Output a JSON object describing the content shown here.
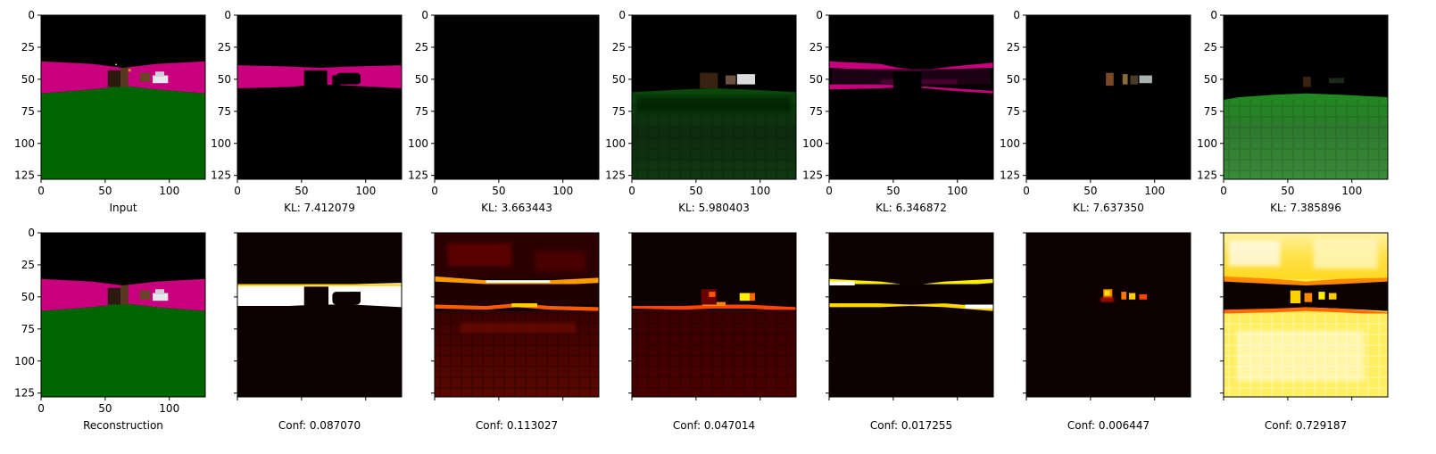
{
  "figure": {
    "layout": "2 rows x 7 image panels"
  },
  "chart_data": [
    {
      "type": "heatmap",
      "panel": "top-1",
      "content": "input scene: black sky, magenta band, green ground, brown blocks and white car",
      "caption": "Input",
      "xlim": [
        0,
        127
      ],
      "ylim": [
        127,
        0
      ],
      "xticks": [
        "0",
        "50",
        "100"
      ],
      "yticks": [
        "0",
        "25",
        "50",
        "75",
        "100",
        "125"
      ]
    },
    {
      "type": "heatmap",
      "panel": "top-2",
      "content": "component: magenta band with dark blocks",
      "caption": "KL: 7.412079",
      "xlim": [
        0,
        127
      ],
      "ylim": [
        127,
        0
      ],
      "xticks": [
        "0",
        "50",
        "100"
      ],
      "yticks": [
        "0",
        "25",
        "50",
        "75",
        "100",
        "125"
      ]
    },
    {
      "type": "heatmap",
      "panel": "top-3",
      "content": "component: nearly black",
      "caption": "KL: 3.663443",
      "xlim": [
        0,
        127
      ],
      "ylim": [
        127,
        0
      ],
      "xticks": [
        "0",
        "50",
        "100"
      ],
      "yticks": [
        "0",
        "25",
        "50",
        "75",
        "100",
        "125"
      ]
    },
    {
      "type": "heatmap",
      "panel": "top-4",
      "content": "component: dark green ground with objects",
      "caption": "KL: 5.980403",
      "xlim": [
        0,
        127
      ],
      "ylim": [
        127,
        0
      ],
      "xticks": [
        "0",
        "50",
        "100"
      ],
      "yticks": [
        "0",
        "25",
        "50",
        "75",
        "100",
        "125"
      ]
    },
    {
      "type": "heatmap",
      "panel": "top-5",
      "content": "component: thin magenta band",
      "caption": "KL: 6.346872",
      "xlim": [
        0,
        127
      ],
      "ylim": [
        127,
        0
      ],
      "xticks": [
        "0",
        "50",
        "100"
      ],
      "yticks": [
        "0",
        "25",
        "50",
        "75",
        "100",
        "125"
      ]
    },
    {
      "type": "heatmap",
      "panel": "top-6",
      "content": "component: small objects only",
      "caption": "KL: 7.637350",
      "xlim": [
        0,
        127
      ],
      "ylim": [
        127,
        0
      ],
      "xticks": [
        "0",
        "50",
        "100"
      ],
      "yticks": [
        "0",
        "25",
        "50",
        "75",
        "100",
        "125"
      ]
    },
    {
      "type": "heatmap",
      "panel": "top-7",
      "content": "component: green ground",
      "caption": "KL: 7.385896",
      "xlim": [
        0,
        127
      ],
      "ylim": [
        127,
        0
      ],
      "xticks": [
        "0",
        "50",
        "100"
      ],
      "yticks": [
        "0",
        "25",
        "50",
        "75",
        "100",
        "125"
      ]
    },
    {
      "type": "heatmap",
      "panel": "bottom-1",
      "content": "reconstruction of input scene",
      "caption": "Reconstruction",
      "xlim": [
        0,
        127
      ],
      "ylim": [
        127,
        0
      ],
      "xticks": [
        "0",
        "50",
        "100"
      ],
      "yticks": [
        "0",
        "25",
        "50",
        "75",
        "100",
        "125"
      ]
    },
    {
      "type": "heatmap",
      "panel": "bottom-2",
      "content": "confidence map (hot colormap)",
      "caption": "Conf: 0.087070",
      "tick_labels_shown": false
    },
    {
      "type": "heatmap",
      "panel": "bottom-3",
      "content": "confidence map (hot colormap)",
      "caption": "Conf: 0.113027",
      "tick_labels_shown": false
    },
    {
      "type": "heatmap",
      "panel": "bottom-4",
      "content": "confidence map (hot colormap)",
      "caption": "Conf: 0.047014",
      "tick_labels_shown": false
    },
    {
      "type": "heatmap",
      "panel": "bottom-5",
      "content": "confidence map (hot colormap)",
      "caption": "Conf: 0.017255",
      "tick_labels_shown": false
    },
    {
      "type": "heatmap",
      "panel": "bottom-6",
      "content": "confidence map (hot colormap)",
      "caption": "Conf: 0.006447",
      "tick_labels_shown": false
    },
    {
      "type": "heatmap",
      "panel": "bottom-7",
      "content": "confidence map (hot colormap)",
      "caption": "Conf: 0.729187",
      "tick_labels_shown": false
    }
  ],
  "colors": {
    "sky": "#000000",
    "magenta_band": "#c8007e",
    "ground_green": "#006400",
    "hot_dark": "#0c0000",
    "hot_red": "#b00000",
    "hot_orange": "#ff6a00",
    "hot_yellow": "#ffee00",
    "hot_white": "#ffffff"
  }
}
